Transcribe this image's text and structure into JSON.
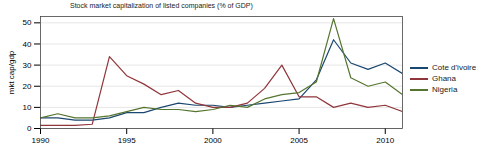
{
  "chart_data": {
    "type": "line",
    "title": "Stock market capitalization of listed companies (% of GDP)",
    "y_label": "mkt cap/gdp",
    "x": [
      1990,
      1991,
      1992,
      1993,
      1994,
      1995,
      1996,
      1997,
      1998,
      1999,
      2000,
      2001,
      2002,
      2003,
      2004,
      2005,
      2006,
      2007,
      2008,
      2009,
      2010,
      2011
    ],
    "series": [
      {
        "name": "Cote d'ivoire",
        "color": "#1a476f",
        "values": [
          5,
          5,
          4,
          4,
          5,
          7.5,
          7.5,
          10,
          12,
          11,
          11,
          10,
          11,
          12,
          13,
          14,
          23,
          42,
          31,
          28,
          31,
          26
        ]
      },
      {
        "name": "Ghana",
        "color": "#90353b",
        "values": [
          1.5,
          1.5,
          1.5,
          2,
          34,
          25,
          21,
          16,
          18,
          12,
          10,
          10,
          12,
          19,
          30,
          15,
          15,
          10,
          12,
          10,
          11,
          8
        ]
      },
      {
        "name": "Nigeria",
        "color": "#55752f",
        "values": [
          5,
          7,
          5,
          5,
          6,
          8,
          10,
          9,
          9,
          8,
          9,
          11,
          10,
          14,
          16,
          17,
          22,
          52,
          24,
          20,
          22,
          16
        ]
      }
    ],
    "xlim": [
      1990,
      2011
    ],
    "xticks": [
      1990,
      1995,
      2000,
      2005,
      2010
    ],
    "ylim": [
      0,
      53
    ],
    "yticks": [
      0,
      10,
      20,
      30,
      40,
      50
    ],
    "grid": true,
    "legend": "right"
  }
}
